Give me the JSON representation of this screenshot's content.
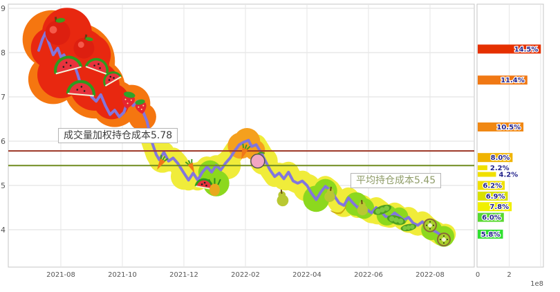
{
  "chart_data": {
    "type": "line",
    "title": "",
    "left": {
      "y_ticks": [
        4,
        5,
        6,
        7,
        8,
        9
      ],
      "ylim": [
        3.3,
        9.1
      ],
      "x_ticks": [
        "2021-08",
        "2021-10",
        "2021-12",
        "2022-02",
        "2022-04",
        "2022-06",
        "2022-08"
      ],
      "x_unit": "months_since_2021-07",
      "price_line_color": "#8276dd",
      "vwap_line": {
        "value": 5.78,
        "label": "成交量加权持仓成本5.78",
        "color": "#9c3524",
        "label_color": "#3c3c3c"
      },
      "avg_line": {
        "value": 5.45,
        "label": "平均持仓成本5.45",
        "color": "#6f8b1e",
        "label_color": "#8f9c68"
      },
      "price_series": [
        [
          0.28,
          8.05
        ],
        [
          0.4,
          8.3
        ],
        [
          0.5,
          8.45
        ],
        [
          0.62,
          8.2
        ],
        [
          0.75,
          7.95
        ],
        [
          0.9,
          8.1
        ],
        [
          1.0,
          7.9
        ],
        [
          1.1,
          7.95
        ],
        [
          1.25,
          7.7
        ],
        [
          1.4,
          7.8
        ],
        [
          1.55,
          7.5
        ],
        [
          1.7,
          7.15
        ],
        [
          1.85,
          7.25
        ],
        [
          2.0,
          7.0
        ],
        [
          2.15,
          6.9
        ],
        [
          2.3,
          7.05
        ],
        [
          2.45,
          6.8
        ],
        [
          2.6,
          6.6
        ],
        [
          2.75,
          6.7
        ],
        [
          2.9,
          6.55
        ],
        [
          3.05,
          6.65
        ],
        [
          3.2,
          6.95
        ],
        [
          3.35,
          6.8
        ],
        [
          3.5,
          6.9
        ],
        [
          3.65,
          6.7
        ],
        [
          3.8,
          6.45
        ],
        [
          3.95,
          6.0
        ],
        [
          4.1,
          5.7
        ],
        [
          4.2,
          5.58
        ],
        [
          4.35,
          5.75
        ],
        [
          4.5,
          5.55
        ],
        [
          4.65,
          5.62
        ],
        [
          4.8,
          5.5
        ],
        [
          5.0,
          5.28
        ],
        [
          5.15,
          5.12
        ],
        [
          5.3,
          5.28
        ],
        [
          5.45,
          5.12
        ],
        [
          5.6,
          5.3
        ],
        [
          5.75,
          5.42
        ],
        [
          5.9,
          5.3
        ],
        [
          6.05,
          5.45
        ],
        [
          6.2,
          5.35
        ],
        [
          6.35,
          5.5
        ],
        [
          6.5,
          5.62
        ],
        [
          6.65,
          5.78
        ],
        [
          6.8,
          5.92
        ],
        [
          6.95,
          5.98
        ],
        [
          7.1,
          6.02
        ],
        [
          7.2,
          5.88
        ],
        [
          7.35,
          5.92
        ],
        [
          7.5,
          5.75
        ],
        [
          7.65,
          5.55
        ],
        [
          7.8,
          5.35
        ],
        [
          7.95,
          5.2
        ],
        [
          8.1,
          5.28
        ],
        [
          8.25,
          5.15
        ],
        [
          8.4,
          5.3
        ],
        [
          8.55,
          5.1
        ],
        [
          8.7,
          5.05
        ],
        [
          8.85,
          5.1
        ],
        [
          9.0,
          5.0
        ],
        [
          9.15,
          4.82
        ],
        [
          9.3,
          4.68
        ],
        [
          9.45,
          4.85
        ],
        [
          9.6,
          4.98
        ],
        [
          9.75,
          4.9
        ],
        [
          9.9,
          4.75
        ],
        [
          10.05,
          4.6
        ],
        [
          10.2,
          4.55
        ],
        [
          10.35,
          4.72
        ],
        [
          10.5,
          4.6
        ],
        [
          10.65,
          4.5
        ],
        [
          10.8,
          4.55
        ],
        [
          10.95,
          4.45
        ],
        [
          11.1,
          4.38
        ],
        [
          11.25,
          4.5
        ],
        [
          11.4,
          4.42
        ],
        [
          11.55,
          4.3
        ],
        [
          11.7,
          4.28
        ],
        [
          11.85,
          4.38
        ],
        [
          12.0,
          4.3
        ],
        [
          12.15,
          4.22
        ],
        [
          12.3,
          4.28
        ],
        [
          12.45,
          4.15
        ],
        [
          12.6,
          4.1
        ],
        [
          12.75,
          4.18
        ],
        [
          12.9,
          4.08
        ],
        [
          13.05,
          4.0
        ],
        [
          13.2,
          3.95
        ],
        [
          13.35,
          3.88
        ],
        [
          13.5,
          3.9
        ]
      ]
    },
    "right": {
      "x_ticks": [
        {
          "label": "0",
          "value": 0
        },
        {
          "label": "2",
          "value": 2
        }
      ],
      "exponent_label": "1e8",
      "bar_label_color": "#23238c",
      "bars": [
        {
          "label": "14.5%",
          "value": 14.5,
          "price": 8.08,
          "color": "#e53000",
          "thin": false
        },
        {
          "label": "11.4%",
          "value": 11.4,
          "price": 7.38,
          "color": "#f07814",
          "thin": false
        },
        {
          "label": "10.5%",
          "value": 10.5,
          "price": 6.32,
          "color": "#f08814",
          "thin": false
        },
        {
          "label": "8.0%",
          "value": 8.0,
          "price": 5.63,
          "color": "#f0b400",
          "thin": false
        },
        {
          "label": "2.2%",
          "value": 2.2,
          "price": 5.4,
          "color": "#f0e000",
          "thin": true
        },
        {
          "label": "4.2%",
          "value": 4.2,
          "price": 5.25,
          "color": "#f0e000",
          "thin": true
        },
        {
          "label": "6.2%",
          "value": 6.2,
          "price": 5.0,
          "color": "#f0e000",
          "thin": false
        },
        {
          "label": "6.9%",
          "value": 6.9,
          "price": 4.76,
          "color": "#d8e000",
          "thin": false
        },
        {
          "label": "7.8%",
          "value": 7.8,
          "price": 4.52,
          "color": "#f0f000",
          "thin": false
        },
        {
          "label": "6.0%",
          "value": 6.0,
          "price": 4.28,
          "color": "#58d830",
          "thin": false
        },
        {
          "label": "5.8%",
          "value": 5.8,
          "price": 3.9,
          "color": "#30e030",
          "thin": false
        }
      ]
    }
  },
  "decorations": {
    "blobs": [
      {
        "c": "#f57610",
        "t": 0.7,
        "p": 8.3,
        "r": 42
      },
      {
        "c": "#f57610",
        "t": 1.5,
        "p": 7.8,
        "r": 56
      },
      {
        "c": "#f57610",
        "t": 0.75,
        "p": 7.4,
        "r": 36
      },
      {
        "c": "#f57610",
        "t": 2.1,
        "p": 7.2,
        "r": 44
      },
      {
        "c": "#f57610",
        "t": 2.75,
        "p": 6.85,
        "r": 34
      },
      {
        "c": "#f57610",
        "t": 3.3,
        "p": 6.85,
        "r": 27
      },
      {
        "c": "#f57610",
        "t": 3.65,
        "p": 6.55,
        "r": 20
      },
      {
        "c": "#e82810",
        "t": 1.2,
        "p": 8.45,
        "r": 36
      },
      {
        "c": "#e82810",
        "t": 0.7,
        "p": 8.1,
        "r": 30
      },
      {
        "c": "#e82810",
        "t": 1.55,
        "p": 7.85,
        "r": 46
      },
      {
        "c": "#e82810",
        "t": 1.0,
        "p": 7.5,
        "r": 34
      },
      {
        "c": "#e82810",
        "t": 2.1,
        "p": 7.25,
        "r": 36
      },
      {
        "c": "#e82810",
        "t": 2.65,
        "p": 6.9,
        "r": 26
      },
      {
        "c": "#e82810",
        "t": 1.95,
        "p": 7.95,
        "r": 30
      }
    ],
    "spots": [
      {
        "c": "#f0ec3a",
        "t": 4.3,
        "p": 5.6,
        "r": 20
      },
      {
        "c": "#f0ec3a",
        "t": 5.0,
        "p": 5.2,
        "r": 19
      },
      {
        "c": "#f0ec3a",
        "t": 5.5,
        "p": 5.25,
        "r": 18
      },
      {
        "c": "#f0ec3a",
        "t": 6.4,
        "p": 5.45,
        "r": 20
      },
      {
        "c": "#f0ec3a",
        "t": 7.6,
        "p": 5.55,
        "r": 20
      },
      {
        "c": "#f0ec3a",
        "t": 8.3,
        "p": 5.2,
        "r": 20
      },
      {
        "c": "#f0ec3a",
        "t": 9.0,
        "p": 4.95,
        "r": 20
      },
      {
        "c": "#f0ec3a",
        "t": 10.2,
        "p": 4.6,
        "r": 20
      },
      {
        "c": "#f0ec3a",
        "t": 11.3,
        "p": 4.4,
        "r": 18
      },
      {
        "c": "#f0ec3a",
        "t": 12.3,
        "p": 4.18,
        "r": 16
      },
      {
        "c": "#8cd81e",
        "t": 5.85,
        "p": 5.3,
        "r": 17
      },
      {
        "c": "#8cd81e",
        "t": 6.05,
        "p": 5.05,
        "r": 19
      },
      {
        "c": "#8cd81e",
        "t": 9.3,
        "p": 4.7,
        "r": 19
      },
      {
        "c": "#8cd81e",
        "t": 9.6,
        "p": 4.88,
        "r": 17
      },
      {
        "c": "#8cd81e",
        "t": 10.6,
        "p": 4.58,
        "r": 17
      },
      {
        "c": "#8cd81e",
        "t": 10.85,
        "p": 4.48,
        "r": 15
      },
      {
        "c": "#8cd81e",
        "t": 11.6,
        "p": 4.33,
        "r": 15
      },
      {
        "c": "#8cd81e",
        "t": 12.0,
        "p": 4.3,
        "r": 13
      },
      {
        "c": "#8cd81e",
        "t": 13.05,
        "p": 4.0,
        "r": 15
      },
      {
        "c": "#8cd81e",
        "t": 13.45,
        "p": 3.85,
        "r": 15
      },
      {
        "c": "#f5a01e",
        "t": 6.85,
        "p": 5.9,
        "r": 19
      },
      {
        "c": "#f5a01e",
        "t": 7.05,
        "p": 6.0,
        "r": 19
      },
      {
        "c": "#f5a01e",
        "t": 7.3,
        "p": 5.8,
        "r": 15
      }
    ],
    "fruits": [
      {
        "type": "apple",
        "t": 0.9,
        "p": 8.45,
        "s": 36,
        "rot": -8
      },
      {
        "type": "apple",
        "t": 1.75,
        "p": 8.1,
        "s": 30,
        "rot": 10
      },
      {
        "type": "watermelon",
        "t": 1.25,
        "p": 7.6,
        "s": 38,
        "rot": -15
      },
      {
        "type": "watermelon",
        "t": 2.15,
        "p": 7.6,
        "s": 32,
        "rot": 20
      },
      {
        "type": "watermelon",
        "t": 1.65,
        "p": 7.05,
        "s": 38,
        "rot": 5
      },
      {
        "type": "watermelon",
        "t": 2.7,
        "p": 7.35,
        "s": 26,
        "rot": -30
      },
      {
        "type": "strawberry",
        "t": 3.2,
        "p": 6.95,
        "s": 28,
        "rot": 12
      },
      {
        "type": "strawberry",
        "t": 3.6,
        "p": 6.8,
        "s": 24,
        "rot": -12
      },
      {
        "type": "carrot",
        "t": 4.25,
        "p": 5.5,
        "s": 22,
        "rot": 30
      },
      {
        "type": "carrot",
        "t": 5.25,
        "p": 5.42,
        "s": 20,
        "rot": -25
      },
      {
        "type": "watermelon",
        "t": 5.65,
        "p": 4.95,
        "s": 24,
        "rot": 10
      },
      {
        "type": "pineapple",
        "t": 6.0,
        "p": 4.95,
        "s": 24,
        "rot": 0
      },
      {
        "type": "carrot",
        "t": 6.95,
        "p": 5.75,
        "s": 22,
        "rot": 20
      },
      {
        "type": "peach",
        "t": 7.4,
        "p": 5.55,
        "s": 20,
        "rot": 0
      },
      {
        "type": "pear",
        "t": 8.2,
        "p": 4.72,
        "s": 24,
        "rot": -8
      },
      {
        "type": "pear",
        "t": 9.75,
        "p": 4.8,
        "s": 22,
        "rot": 8
      },
      {
        "type": "banana",
        "t": 10.05,
        "p": 4.45,
        "s": 24,
        "rot": -20
      },
      {
        "type": "pear",
        "t": 10.8,
        "p": 4.5,
        "s": 22,
        "rot": -5
      },
      {
        "type": "peas",
        "t": 11.45,
        "p": 4.45,
        "s": 24,
        "rot": -20
      },
      {
        "type": "peas",
        "t": 11.9,
        "p": 4.22,
        "s": 24,
        "rot": 15
      },
      {
        "type": "peas",
        "t": 12.3,
        "p": 4.05,
        "s": 20,
        "rot": -10
      },
      {
        "type": "kiwi",
        "t": 13.0,
        "p": 4.1,
        "s": 20,
        "rot": 0
      },
      {
        "type": "kiwi",
        "t": 13.45,
        "p": 3.78,
        "s": 20,
        "rot": 0
      }
    ]
  }
}
